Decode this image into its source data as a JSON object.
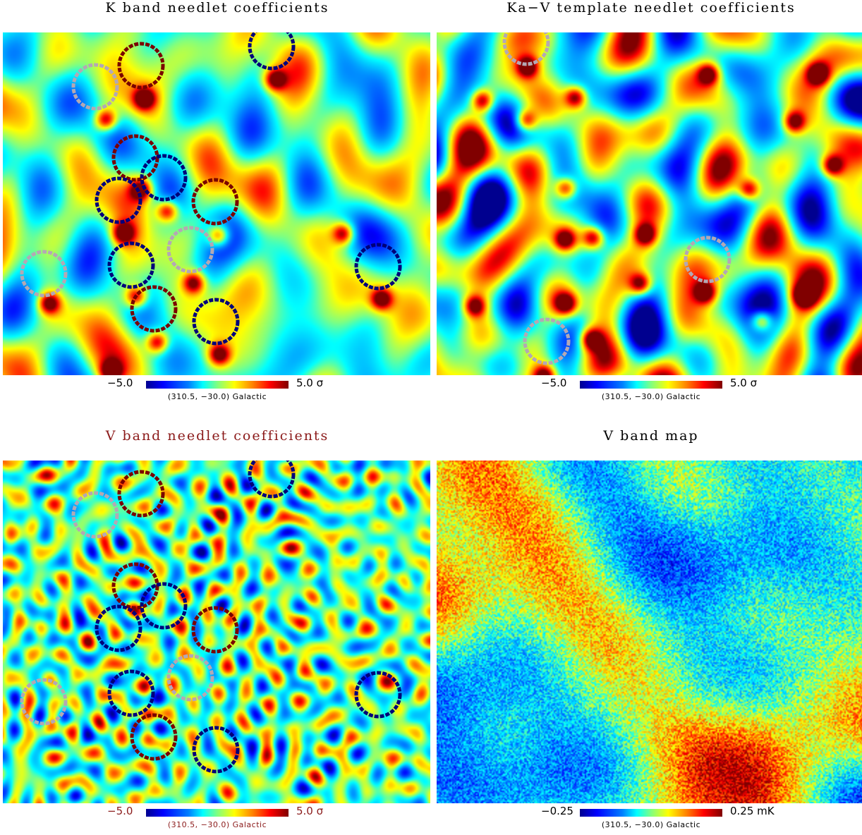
{
  "panels": [
    {
      "title": "K band needlet coefficients",
      "title_color": "#000000",
      "colorbar_min": "−5.0",
      "colorbar_max": "5.0 σ",
      "coords": "(310.5, −30.0) Galactic",
      "label_color": "#000000",
      "map_style": "smooth",
      "circle_set": "k_band"
    },
    {
      "title": "Ka−V template needlet coefficients",
      "title_color": "#000000",
      "colorbar_min": "−5.0",
      "colorbar_max": "5.0 σ",
      "coords": "(310.5, −30.0) Galactic",
      "label_color": "#000000",
      "map_style": "template",
      "circle_set": "template"
    },
    {
      "title": "V band needlet coefficients",
      "title_color": "#8b1a1a",
      "colorbar_min": "−5.0",
      "colorbar_max": "5.0 σ",
      "coords": "(310.5, −30.0) Galactic",
      "label_color": "#8b1a1a",
      "map_style": "fine",
      "circle_set": "k_band"
    },
    {
      "title": "V band map",
      "title_color": "#000000",
      "colorbar_min": "−0.25",
      "colorbar_max": "0.25 mK",
      "coords": "(310.5, −30.0) Galactic",
      "label_color": "#000000",
      "map_style": "noisy",
      "circle_set": "none"
    }
  ],
  "colors": {
    "circle_dark_red": "#7a0000",
    "circle_dark_blue": "#00007a",
    "circle_grey": "#b4a8b4"
  }
}
